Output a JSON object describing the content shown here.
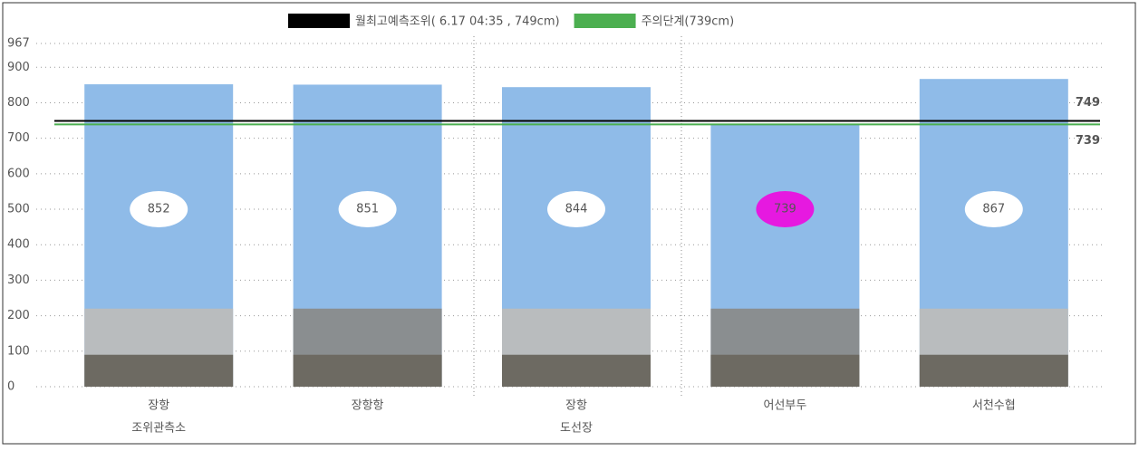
{
  "chart_data": {
    "type": "bar",
    "legend": [
      {
        "name": "월최고예측조위( 6.17  04:35 , 749cm)",
        "value": 749,
        "color": "#000000"
      },
      {
        "name": "주의단계(739cm)",
        "value": 739,
        "color": "#4caf50"
      }
    ],
    "categories": [
      [
        "장항",
        "조위관측소"
      ],
      [
        "장항항"
      ],
      [
        "장항",
        "도선장"
      ],
      [
        "어선부두"
      ],
      [
        "서천수협"
      ]
    ],
    "values": [
      852,
      851,
      844,
      739,
      867
    ],
    "color": "#8fbbe8",
    "value_label_colors": [
      "#ffffff",
      "#ffffff",
      "#ffffff",
      "#e619e0",
      "#ffffff"
    ],
    "ylim": [
      0,
      967
    ],
    "yticks": [
      0,
      100,
      200,
      300,
      400,
      500,
      600,
      700,
      800,
      900,
      967
    ],
    "grid": true
  }
}
